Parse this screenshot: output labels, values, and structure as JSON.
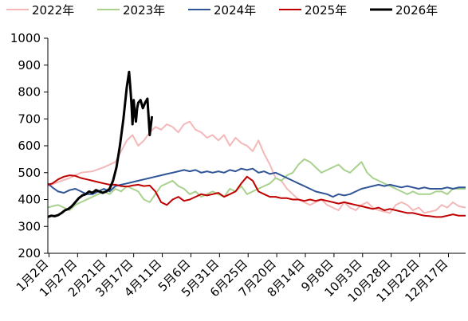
{
  "chart_data": {
    "type": "line",
    "title": "",
    "xlabel": "",
    "ylabel": "",
    "ylim": [
      200,
      1000
    ],
    "yticks": [
      200,
      300,
      400,
      500,
      600,
      700,
      800,
      900,
      1000
    ],
    "x_tick_labels": [
      "1月2日",
      "1月27日",
      "2月21日",
      "3月17日",
      "4月11日",
      "5月6日",
      "5月31日",
      "6月25日",
      "7月20日",
      "8月14日",
      "9月8日",
      "10月3日",
      "10月28日",
      "11月22日",
      "12月17日"
    ],
    "x_tick_days": [
      2,
      27,
      52,
      76,
      101,
      126,
      151,
      176,
      201,
      226,
      251,
      276,
      301,
      326,
      351
    ],
    "xlim_days": [
      1,
      366
    ],
    "grid": false,
    "legend_position": "top",
    "series": [
      {
        "name": "2022年",
        "color": "#f4b8b8",
        "x": [
          1,
          10,
          20,
          30,
          40,
          50,
          60,
          70,
          75,
          80,
          85,
          90,
          95,
          100,
          105,
          110,
          115,
          120,
          125,
          130,
          135,
          140,
          145,
          150,
          155,
          160,
          165,
          170,
          175,
          180,
          185,
          190,
          195,
          200,
          205,
          210,
          215,
          220,
          225,
          230,
          235,
          240,
          245,
          250,
          255,
          260,
          265,
          270,
          275,
          280,
          285,
          290,
          295,
          300,
          305,
          310,
          315,
          320,
          325,
          330,
          335,
          340,
          345,
          350,
          355,
          360,
          366
        ],
        "y": [
          450,
          465,
          480,
          500,
          505,
          520,
          540,
          620,
          640,
          600,
          620,
          650,
          670,
          660,
          680,
          670,
          650,
          680,
          690,
          660,
          650,
          630,
          640,
          620,
          640,
          600,
          630,
          610,
          600,
          580,
          620,
          570,
          530,
          480,
          470,
          440,
          420,
          400,
          390,
          380,
          390,
          400,
          380,
          370,
          360,
          390,
          370,
          360,
          380,
          390,
          370,
          360,
          355,
          350,
          380,
          390,
          380,
          360,
          370,
          350,
          355,
          360,
          380,
          370,
          390,
          375,
          370
        ]
      },
      {
        "name": "2023年",
        "color": "#a9d18e",
        "x": [
          1,
          5,
          10,
          15,
          20,
          25,
          30,
          35,
          40,
          45,
          50,
          55,
          60,
          65,
          70,
          75,
          80,
          85,
          90,
          95,
          100,
          105,
          110,
          115,
          120,
          125,
          130,
          135,
          140,
          145,
          150,
          155,
          160,
          165,
          170,
          175,
          180,
          185,
          190,
          195,
          200,
          205,
          210,
          215,
          220,
          225,
          230,
          235,
          240,
          245,
          250,
          255,
          260,
          265,
          270,
          275,
          280,
          285,
          290,
          295,
          300,
          305,
          310,
          315,
          320,
          325,
          330,
          335,
          340,
          345,
          350,
          355,
          360,
          366
        ],
        "y": [
          370,
          375,
          380,
          370,
          360,
          380,
          390,
          400,
          410,
          420,
          430,
          420,
          440,
          430,
          450,
          440,
          430,
          400,
          390,
          420,
          450,
          460,
          470,
          450,
          440,
          420,
          430,
          410,
          420,
          430,
          420,
          410,
          440,
          430,
          450,
          420,
          430,
          440,
          450,
          460,
          480,
          470,
          490,
          500,
          530,
          550,
          540,
          520,
          500,
          510,
          520,
          530,
          510,
          500,
          520,
          540,
          500,
          480,
          470,
          460,
          450,
          440,
          430,
          420,
          430,
          420,
          420,
          420,
          430,
          430,
          420,
          440,
          440,
          440
        ]
      },
      {
        "name": "2024年",
        "color": "#2f5597",
        "x": [
          1,
          5,
          10,
          15,
          20,
          25,
          30,
          35,
          40,
          45,
          50,
          55,
          60,
          65,
          70,
          75,
          80,
          85,
          90,
          95,
          100,
          105,
          110,
          115,
          120,
          125,
          130,
          135,
          140,
          145,
          150,
          155,
          160,
          165,
          170,
          175,
          180,
          185,
          190,
          195,
          200,
          205,
          210,
          215,
          220,
          225,
          230,
          235,
          240,
          245,
          250,
          255,
          260,
          265,
          270,
          275,
          280,
          285,
          290,
          295,
          300,
          305,
          310,
          315,
          320,
          325,
          330,
          335,
          340,
          345,
          350,
          355,
          360,
          366
        ],
        "y": [
          460,
          445,
          430,
          425,
          435,
          440,
          430,
          420,
          420,
          430,
          440,
          430,
          450,
          455,
          460,
          465,
          470,
          475,
          480,
          485,
          490,
          495,
          500,
          505,
          510,
          505,
          510,
          500,
          505,
          500,
          505,
          500,
          510,
          505,
          515,
          510,
          515,
          500,
          505,
          495,
          500,
          490,
          480,
          470,
          460,
          450,
          440,
          430,
          425,
          420,
          410,
          420,
          415,
          420,
          430,
          440,
          445,
          450,
          455,
          450,
          455,
          450,
          445,
          450,
          445,
          440,
          445,
          440,
          440,
          440,
          445,
          440,
          445,
          445
        ]
      },
      {
        "name": "2025年",
        "color": "#c00000",
        "x": [
          1,
          5,
          10,
          15,
          20,
          25,
          30,
          35,
          40,
          45,
          50,
          55,
          60,
          65,
          70,
          75,
          80,
          85,
          90,
          95,
          100,
          105,
          110,
          115,
          120,
          125,
          130,
          135,
          140,
          145,
          150,
          155,
          160,
          165,
          170,
          175,
          180,
          185,
          190,
          195,
          200,
          205,
          210,
          215,
          220,
          225,
          230,
          235,
          240,
          245,
          250,
          255,
          260,
          265,
          270,
          275,
          280,
          285,
          290,
          295,
          300,
          305,
          310,
          315,
          320,
          325,
          330,
          335,
          340,
          345,
          350,
          355,
          360,
          366
        ],
        "y": [
          455,
          460,
          475,
          485,
          490,
          488,
          480,
          475,
          470,
          465,
          460,
          455,
          455,
          450,
          448,
          452,
          455,
          450,
          452,
          430,
          390,
          380,
          400,
          410,
          395,
          400,
          410,
          420,
          415,
          420,
          425,
          410,
          420,
          430,
          460,
          485,
          470,
          430,
          420,
          410,
          410,
          405,
          405,
          400,
          400,
          395,
          400,
          395,
          400,
          395,
          390,
          385,
          390,
          385,
          380,
          375,
          370,
          365,
          370,
          360,
          365,
          360,
          355,
          350,
          350,
          345,
          340,
          338,
          335,
          335,
          340,
          345,
          340,
          340
        ]
      },
      {
        "name": "2026年",
        "color": "#000000",
        "x": [
          1,
          4,
          7,
          10,
          13,
          16,
          19,
          22,
          25,
          28,
          31,
          34,
          37,
          40,
          43,
          46,
          49,
          52,
          55,
          58,
          61,
          64,
          67,
          70,
          72,
          73,
          74,
          75,
          76,
          77,
          78,
          79,
          80,
          82,
          84,
          86,
          88,
          90,
          92
        ],
        "y": [
          335,
          340,
          338,
          342,
          350,
          360,
          365,
          375,
          390,
          405,
          415,
          420,
          430,
          425,
          435,
          430,
          425,
          430,
          440,
          470,
          520,
          600,
          700,
          820,
          875,
          820,
          760,
          680,
          770,
          720,
          690,
          740,
          760,
          770,
          740,
          760,
          775,
          640,
          710
        ]
      }
    ]
  }
}
